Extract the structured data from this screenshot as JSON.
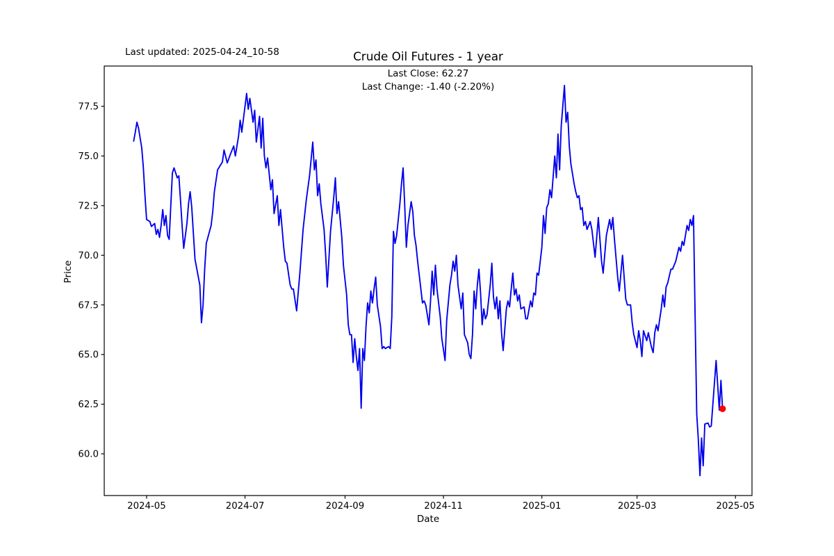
{
  "header": {
    "last_updated": "Last updated: 2025-04-24_10-58",
    "title": "Crude Oil Futures - 1 year"
  },
  "annotation": {
    "line1": "Last Close: 62.27",
    "line2": "Last Change: -1.40 (-2.20%)"
  },
  "chart_data": {
    "type": "line",
    "title": "Crude Oil Futures - 1 year",
    "xlabel": "Date",
    "ylabel": "Price",
    "x_unit": "days since 2024-04-23",
    "xlim_days": [
      -18.25,
      383.25
    ],
    "ylim": [
      57.9,
      79.53
    ],
    "grid": false,
    "legend": "none",
    "line_color": "#0000ee",
    "marker_color": "#ff0000",
    "axis_color": "#000000",
    "x_ticks": [
      {
        "d": 8,
        "label": "2024-05"
      },
      {
        "d": 69,
        "label": "2024-07"
      },
      {
        "d": 131,
        "label": "2024-09"
      },
      {
        "d": 192,
        "label": "2024-11"
      },
      {
        "d": 253,
        "label": "2025-01"
      },
      {
        "d": 312,
        "label": "2025-03"
      },
      {
        "d": 373,
        "label": "2025-05"
      }
    ],
    "y_ticks": [
      60.0,
      62.5,
      65.0,
      67.5,
      70.0,
      72.5,
      75.0,
      77.5
    ],
    "last_point": {
      "d": 365,
      "price": 62.27
    },
    "series": [
      {
        "name": "Close",
        "points": [
          [
            0,
            75.75
          ],
          [
            1,
            76.2
          ],
          [
            2,
            76.7
          ],
          [
            3,
            76.4
          ],
          [
            5,
            75.4
          ],
          [
            6,
            74.4
          ],
          [
            7,
            73.0
          ],
          [
            8,
            71.8
          ],
          [
            9,
            71.75
          ],
          [
            10,
            71.7
          ],
          [
            11,
            71.45
          ],
          [
            13,
            71.6
          ],
          [
            14,
            71.05
          ],
          [
            15,
            71.3
          ],
          [
            16,
            70.9
          ],
          [
            17,
            71.5
          ],
          [
            18,
            72.3
          ],
          [
            19,
            71.5
          ],
          [
            20,
            72.0
          ],
          [
            21,
            71.0
          ],
          [
            22,
            70.8
          ],
          [
            23,
            72.5
          ],
          [
            24,
            74.15
          ],
          [
            25,
            74.4
          ],
          [
            27,
            73.9
          ],
          [
            28,
            74.0
          ],
          [
            29,
            72.8
          ],
          [
            30,
            71.5
          ],
          [
            31,
            70.35
          ],
          [
            33,
            71.6
          ],
          [
            34,
            72.6
          ],
          [
            35,
            73.2
          ],
          [
            36,
            72.4
          ],
          [
            37,
            71.1
          ],
          [
            38,
            69.8
          ],
          [
            41,
            68.5
          ],
          [
            42,
            66.6
          ],
          [
            43,
            67.5
          ],
          [
            44,
            69.3
          ],
          [
            45,
            70.6
          ],
          [
            48,
            71.5
          ],
          [
            49,
            72.2
          ],
          [
            50,
            73.2
          ],
          [
            52,
            74.3
          ],
          [
            55,
            74.7
          ],
          [
            56,
            75.3
          ],
          [
            58,
            74.65
          ],
          [
            60,
            75.1
          ],
          [
            62,
            75.5
          ],
          [
            63,
            75.0
          ],
          [
            65,
            76.0
          ],
          [
            66,
            76.8
          ],
          [
            67,
            76.2
          ],
          [
            69,
            77.5
          ],
          [
            70,
            78.15
          ],
          [
            71,
            77.35
          ],
          [
            72,
            77.9
          ],
          [
            74,
            76.7
          ],
          [
            75,
            77.3
          ],
          [
            76,
            75.7
          ],
          [
            78,
            77.0
          ],
          [
            79,
            75.4
          ],
          [
            80,
            76.9
          ],
          [
            81,
            75.0
          ],
          [
            82,
            74.4
          ],
          [
            83,
            74.9
          ],
          [
            85,
            73.3
          ],
          [
            86,
            73.8
          ],
          [
            87,
            72.1
          ],
          [
            89,
            73.0
          ],
          [
            90,
            71.5
          ],
          [
            91,
            72.3
          ],
          [
            93,
            70.4
          ],
          [
            94,
            69.7
          ],
          [
            95,
            69.6
          ],
          [
            97,
            68.5
          ],
          [
            98,
            68.3
          ],
          [
            99,
            68.3
          ],
          [
            101,
            67.2
          ],
          [
            103,
            69.1
          ],
          [
            105,
            71.3
          ],
          [
            107,
            72.8
          ],
          [
            109,
            74.0
          ],
          [
            111,
            75.7
          ],
          [
            112,
            74.3
          ],
          [
            113,
            74.8
          ],
          [
            114,
            73.0
          ],
          [
            115,
            73.6
          ],
          [
            116,
            72.6
          ],
          [
            118,
            71.3
          ],
          [
            119,
            70.0
          ],
          [
            120,
            68.4
          ],
          [
            121,
            69.8
          ],
          [
            122,
            71.2
          ],
          [
            124,
            72.9
          ],
          [
            125,
            73.9
          ],
          [
            126,
            72.1
          ],
          [
            127,
            72.7
          ],
          [
            129,
            70.9
          ],
          [
            130,
            69.5
          ],
          [
            132,
            68.0
          ],
          [
            133,
            66.5
          ],
          [
            134,
            66.0
          ],
          [
            135,
            66.0
          ],
          [
            136,
            64.6
          ],
          [
            137,
            65.8
          ],
          [
            138,
            64.9
          ],
          [
            139,
            64.2
          ],
          [
            140,
            65.3
          ],
          [
            141,
            62.3
          ],
          [
            142,
            65.3
          ],
          [
            143,
            64.7
          ],
          [
            144,
            66.4
          ],
          [
            145,
            67.6
          ],
          [
            146,
            67.1
          ],
          [
            147,
            68.2
          ],
          [
            148,
            67.6
          ],
          [
            149,
            68.3
          ],
          [
            150,
            68.9
          ],
          [
            151,
            67.5
          ],
          [
            153,
            66.4
          ],
          [
            154,
            65.3
          ],
          [
            155,
            65.4
          ],
          [
            156,
            65.3
          ],
          [
            158,
            65.4
          ],
          [
            159,
            65.3
          ],
          [
            160,
            66.9
          ],
          [
            161,
            71.2
          ],
          [
            162,
            70.6
          ],
          [
            163,
            71.0
          ],
          [
            165,
            72.6
          ],
          [
            166,
            73.6
          ],
          [
            167,
            74.4
          ],
          [
            168,
            72.5
          ],
          [
            169,
            70.4
          ],
          [
            170,
            71.5
          ],
          [
            172,
            72.7
          ],
          [
            173,
            72.2
          ],
          [
            174,
            71.0
          ],
          [
            175,
            70.5
          ],
          [
            176,
            69.7
          ],
          [
            178,
            68.3
          ],
          [
            179,
            67.6
          ],
          [
            180,
            67.7
          ],
          [
            181,
            67.5
          ],
          [
            183,
            66.5
          ],
          [
            184,
            67.7
          ],
          [
            185,
            69.2
          ],
          [
            186,
            68.0
          ],
          [
            187,
            69.5
          ],
          [
            188,
            68.3
          ],
          [
            190,
            66.9
          ],
          [
            191,
            65.8
          ],
          [
            193,
            64.7
          ],
          [
            194,
            66.7
          ],
          [
            196,
            68.5
          ],
          [
            197,
            69.0
          ],
          [
            198,
            69.7
          ],
          [
            199,
            69.2
          ],
          [
            200,
            70.0
          ],
          [
            201,
            68.5
          ],
          [
            202,
            67.9
          ],
          [
            203,
            67.3
          ],
          [
            204,
            68.1
          ],
          [
            205,
            66.0
          ],
          [
            207,
            65.6
          ],
          [
            208,
            65.0
          ],
          [
            209,
            64.8
          ],
          [
            210,
            66.0
          ],
          [
            211,
            68.2
          ],
          [
            212,
            67.3
          ],
          [
            213,
            68.5
          ],
          [
            214,
            69.3
          ],
          [
            215,
            68.1
          ],
          [
            216,
            66.5
          ],
          [
            217,
            67.3
          ],
          [
            218,
            66.8
          ],
          [
            219,
            67.0
          ],
          [
            221,
            68.5
          ],
          [
            222,
            69.6
          ],
          [
            223,
            67.9
          ],
          [
            224,
            67.3
          ],
          [
            225,
            67.9
          ],
          [
            226,
            66.8
          ],
          [
            227,
            67.7
          ],
          [
            228,
            66.1
          ],
          [
            229,
            65.2
          ],
          [
            231,
            67.3
          ],
          [
            232,
            67.7
          ],
          [
            233,
            67.4
          ],
          [
            234,
            68.3
          ],
          [
            235,
            69.1
          ],
          [
            236,
            68.0
          ],
          [
            237,
            68.3
          ],
          [
            238,
            67.7
          ],
          [
            239,
            68.0
          ],
          [
            240,
            67.3
          ],
          [
            242,
            67.4
          ],
          [
            243,
            66.8
          ],
          [
            244,
            66.8
          ],
          [
            246,
            67.7
          ],
          [
            247,
            67.4
          ],
          [
            248,
            68.1
          ],
          [
            249,
            68.0
          ],
          [
            250,
            69.1
          ],
          [
            251,
            69.0
          ],
          [
            253,
            70.4
          ],
          [
            254,
            72.0
          ],
          [
            255,
            71.1
          ],
          [
            256,
            72.4
          ],
          [
            257,
            72.6
          ],
          [
            258,
            73.3
          ],
          [
            259,
            72.9
          ],
          [
            261,
            75.0
          ],
          [
            262,
            73.9
          ],
          [
            263,
            76.1
          ],
          [
            264,
            74.3
          ],
          [
            265,
            76.5
          ],
          [
            267,
            78.55
          ],
          [
            268,
            76.7
          ],
          [
            269,
            77.2
          ],
          [
            270,
            75.5
          ],
          [
            271,
            74.6
          ],
          [
            273,
            73.6
          ],
          [
            274,
            73.2
          ],
          [
            275,
            72.9
          ],
          [
            276,
            73.0
          ],
          [
            277,
            72.3
          ],
          [
            278,
            72.4
          ],
          [
            279,
            71.5
          ],
          [
            280,
            71.7
          ],
          [
            281,
            71.3
          ],
          [
            283,
            71.7
          ],
          [
            284,
            71.3
          ],
          [
            285,
            70.6
          ],
          [
            286,
            69.9
          ],
          [
            288,
            71.9
          ],
          [
            290,
            69.7
          ],
          [
            291,
            69.1
          ],
          [
            293,
            71.0
          ],
          [
            295,
            71.8
          ],
          [
            296,
            71.3
          ],
          [
            297,
            71.9
          ],
          [
            298,
            70.8
          ],
          [
            300,
            68.9
          ],
          [
            301,
            68.2
          ],
          [
            303,
            70.0
          ],
          [
            304,
            68.9
          ],
          [
            305,
            67.8
          ],
          [
            306,
            67.5
          ],
          [
            308,
            67.5
          ],
          [
            309,
            66.6
          ],
          [
            310,
            66.0
          ],
          [
            312,
            65.35
          ],
          [
            313,
            66.2
          ],
          [
            314,
            65.7
          ],
          [
            315,
            64.9
          ],
          [
            316,
            66.2
          ],
          [
            318,
            65.7
          ],
          [
            319,
            66.1
          ],
          [
            321,
            65.35
          ],
          [
            322,
            65.1
          ],
          [
            323,
            66.1
          ],
          [
            324,
            66.5
          ],
          [
            325,
            66.2
          ],
          [
            327,
            67.3
          ],
          [
            328,
            68.0
          ],
          [
            329,
            67.4
          ],
          [
            330,
            68.4
          ],
          [
            331,
            68.6
          ],
          [
            333,
            69.3
          ],
          [
            334,
            69.3
          ],
          [
            336,
            69.7
          ],
          [
            338,
            70.4
          ],
          [
            339,
            70.2
          ],
          [
            340,
            70.7
          ],
          [
            341,
            70.5
          ],
          [
            343,
            71.5
          ],
          [
            344,
            71.25
          ],
          [
            345,
            71.8
          ],
          [
            346,
            71.5
          ],
          [
            347,
            72.0
          ],
          [
            348,
            66.9
          ],
          [
            349,
            62.0
          ],
          [
            350,
            60.7
          ],
          [
            351,
            58.9
          ],
          [
            352,
            60.8
          ],
          [
            353,
            59.4
          ],
          [
            354,
            61.5
          ],
          [
            356,
            61.55
          ],
          [
            357,
            61.35
          ],
          [
            358,
            61.4
          ],
          [
            359,
            62.5
          ],
          [
            361,
            64.7
          ],
          [
            363,
            62.2
          ],
          [
            364,
            63.7
          ],
          [
            365,
            62.27
          ]
        ]
      }
    ]
  }
}
